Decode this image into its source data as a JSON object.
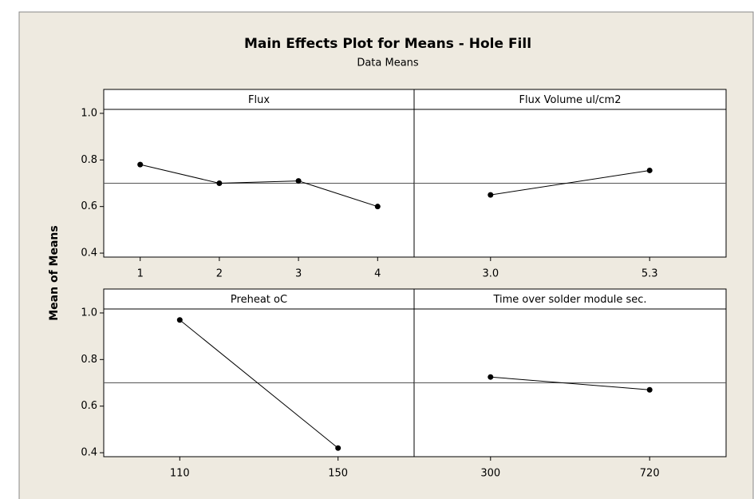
{
  "title": "Main Effects Plot for Means - Hole Fill",
  "subtitle": "Data Means",
  "y_label": "Mean of Means",
  "chart_data": [
    {
      "type": "line",
      "title": "Flux",
      "categories": [
        "1",
        "2",
        "3",
        "4"
      ],
      "values": [
        0.78,
        0.7,
        0.71,
        0.6
      ],
      "color": "#000000",
      "reference_line": 0.7,
      "ylim": [
        0.383,
        1.017
      ],
      "yticks": [
        0.4,
        0.6,
        0.8,
        {
          "value": 1.0,
          "label": "1.0"
        }
      ]
    },
    {
      "type": "line",
      "title": "Flux Volume ul/cm2",
      "categories": [
        "3.0",
        "5.3"
      ],
      "values": [
        0.65,
        0.755
      ],
      "color": "#000000",
      "reference_line": 0.7,
      "ylim": [
        0.383,
        1.017
      ]
    },
    {
      "type": "line",
      "title": "Preheat oC",
      "categories": [
        "110",
        "150"
      ],
      "values": [
        0.97,
        0.42
      ],
      "color": "#000000",
      "reference_line": 0.7,
      "ylim": [
        0.383,
        1.017
      ],
      "yticks": [
        0.4,
        0.6,
        0.8,
        {
          "value": 1.0,
          "label": "1.0"
        }
      ]
    },
    {
      "type": "line",
      "title": "Time over solder module sec.",
      "categories": [
        "300",
        "720"
      ],
      "values": [
        0.725,
        0.67
      ],
      "color": "#000000",
      "reference_line": 0.7,
      "ylim": [
        0.383,
        1.017
      ]
    }
  ]
}
